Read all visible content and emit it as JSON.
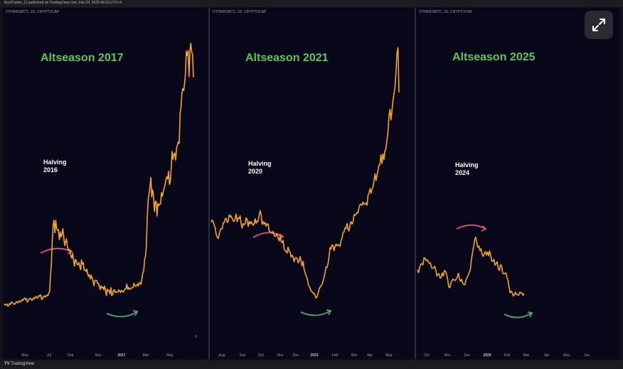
{
  "header": {
    "text": "BestTrader_11 published on TradingView.com, Feb 24, 2025 04:53 UTC+4"
  },
  "footer": {
    "logo_text": "TV",
    "brand": "TradingView"
  },
  "expand_icon": "expand-arrows-icon",
  "colors": {
    "line": "#f5a623",
    "title": "#5fc45f",
    "arrow_pink": "#e05a7a",
    "arrow_green": "#4fa86a",
    "background": "#070719"
  },
  "chart_data": [
    {
      "type": "line",
      "symbol": "OTHERS/BTC, 1D, CRYPTOCAP",
      "title": "Altseason 2017",
      "halving": [
        "Halving",
        "2016"
      ],
      "xlabel": "",
      "ylabel": "",
      "ylim": [
        0,
        100
      ],
      "tick_labels": [
        "May",
        "Jul",
        "Sep",
        "Nov",
        "2017",
        "Mar",
        "May"
      ],
      "corner_label": "0",
      "series": [
        {
          "values": [
            4.1,
            3.6,
            3.8,
            4.0,
            3.2,
            3.5,
            4.2,
            3.9,
            4.8,
            4.5,
            4.3,
            3.9,
            4.0,
            4.6,
            4.9,
            4.4,
            4.7,
            5.2,
            4.8,
            5.0,
            5.6,
            5.3,
            5.9,
            6.2,
            5.7,
            6.0,
            4.7,
            5.3,
            5.8,
            6.1,
            6.0,
            5.4,
            5.5,
            6.3,
            5.9,
            6.6,
            6.8,
            6.2,
            6.4,
            7.1,
            6.9,
            7.4,
            5.7,
            5.9,
            6.7,
            7.0,
            6.5,
            6.9,
            7.3,
            7.0,
            7.9,
            8.5,
            14.0,
            18.7,
            26.8,
            32.8,
            34.7,
            30.1,
            34.6,
            31.7,
            31.0,
            31.2,
            27.6,
            30.4,
            28.6,
            29.6,
            31.6,
            28.4,
            25.4,
            26.8,
            27.9,
            25.1,
            24.1,
            23.5,
            23.6,
            21.6,
            20.8,
            22.6,
            20.1,
            17.9,
            20.3,
            20.0,
            18.5,
            18.4,
            19.2,
            17.7,
            16.6,
            20.2,
            18.6,
            19.1,
            16.4,
            16.5,
            15.9,
            16.8,
            14.9,
            14.1,
            14.8,
            13.2,
            14.5,
            13.5,
            12.4,
            10.7,
            12.6,
            12.7,
            12.6,
            11.6,
            11.6,
            10.5,
            9.3,
            10.7,
            9.9,
            10.2,
            9.3,
            10.6,
            8.8,
            7.1,
            9.5,
            8.9,
            8.9,
            7.7,
            10.0,
            7.1,
            7.5,
            9.1,
            9.2,
            8.2,
            8.4,
            8.4,
            8.4,
            9.2,
            8.7,
            8.2,
            9.0,
            8.7,
            8.4,
            9.1,
            9.5,
            9.6,
            11.3,
            9.4,
            10.1,
            9.3,
            9.6,
            9.8,
            10.0,
            10.0,
            11.6,
            10.8,
            10.5,
            10.8,
            11.4,
            10.6,
            11.8,
            11.8,
            11.2,
            13.3,
            15.4,
            16.3,
            20.3,
            21.5,
            25.3,
            35.8,
            42.0,
            44.5,
            46.8,
            50.4,
            43.2,
            45.8,
            43.8,
            37.9,
            41.4,
            41.7,
            36.2,
            40.8,
            40.0,
            40.6,
            40.7,
            44.8,
            43.4,
            45.0,
            46.5,
            47.6,
            49.6,
            50.6,
            49.8,
            52.6,
            47.8,
            48.8,
            54.1,
            59.9,
            57.0,
            58.8,
            59.3,
            56.7,
            61.2,
            62.3,
            63.4,
            62.8,
            74.0,
            76.0,
            81.1,
            82.9,
            82.2,
            84.6,
            88.5,
            96.6,
            95.0,
            96.8,
            87.3,
            96.5,
            99.5,
            96.4,
            95.3,
            87.0
          ]
        }
      ]
    },
    {
      "type": "line",
      "symbol": "OTHERS/BTC, 1D, CRYPTOCAP",
      "title": "Altseason 2021",
      "halving": [
        "Halving",
        "2020"
      ],
      "xlabel": "",
      "ylabel": "",
      "ylim": [
        0,
        100
      ],
      "tick_labels": [
        "Aug",
        "Sep",
        "Oct",
        "Nov",
        "Dec",
        "2021",
        "Feb",
        "Mar",
        "Apr",
        "May"
      ],
      "series": [
        {
          "values": [
            34.0,
            34.8,
            34.2,
            32.9,
            31.9,
            29.3,
            28.5,
            27.8,
            29.4,
            30.9,
            31.6,
            31.5,
            33.7,
            33.9,
            35.3,
            35.5,
            33.9,
            34.4,
            36.8,
            36.1,
            36.4,
            35.4,
            34.5,
            34.3,
            35.5,
            37.1,
            34.2,
            35.6,
            35.4,
            36.4,
            33.4,
            31.8,
            33.5,
            33.1,
            33.4,
            35.7,
            34.9,
            32.4,
            34.3,
            33.3,
            34.2,
            33.6,
            32.8,
            33.4,
            35.3,
            33.6,
            34.4,
            34.3,
            36.7,
            38.4,
            36.9,
            33.2,
            34.2,
            33.3,
            33.9,
            32.5,
            33.4,
            33.3,
            30.7,
            30.4,
            30.2,
            29.8,
            30.5,
            29.0,
            28.6,
            29.0,
            29.6,
            27.9,
            26.9,
            28.7,
            26.6,
            26.3,
            27.1,
            23.9,
            23.2,
            22.9,
            22.3,
            24.6,
            23.1,
            22.7,
            20.8,
            21.5,
            20.9,
            19.1,
            20.4,
            20.6,
            20.3,
            18.6,
            19.4,
            21.0,
            19.1,
            17.5,
            19.2,
            16.1,
            15.0,
            13.6,
            12.9,
            10.8,
            9.8,
            9.1,
            8.0,
            7.6,
            7.2,
            7.1,
            6.3,
            5.3,
            5.8,
            7.1,
            8.8,
            9.5,
            9.9,
            10.5,
            11.8,
            13.1,
            15.0,
            17.1,
            16.9,
            18.4,
            21.1,
            24.4,
            23.9,
            25.4,
            25.2,
            23.2,
            24.8,
            25.7,
            25.1,
            25.5,
            25.3,
            24.9,
            27.1,
            28.0,
            30.1,
            30.3,
            31.9,
            31.6,
            33.5,
            31.3,
            30.7,
            33.2,
            34.2,
            33.3,
            34.0,
            36.9,
            36.6,
            36.9,
            37.7,
            37.5,
            39.6,
            40.7,
            40.8,
            40.4,
            41.6,
            40.8,
            40.9,
            41.3,
            40.4,
            44.1,
            45.0,
            46.7,
            44.9,
            46.6,
            47.3,
            49.5,
            52.3,
            49.8,
            51.8,
            53.5,
            55.7,
            55.9,
            59.5,
            56.2,
            59.8,
            57.7,
            61.0,
            61.8,
            65.1,
            68.3,
            74.4,
            76.7,
            72.7,
            76.2,
            80.0,
            82.6,
            85.0,
            90.9,
            97.9,
            100.0,
            83.1
          ]
        }
      ]
    },
    {
      "type": "line",
      "symbol": "OTHERS/BTC, 1D, CRYPTOCAP",
      "title": "Altseason 2025",
      "halving": [
        "Halving",
        "2024"
      ],
      "xlabel": "",
      "ylabel": "",
      "ylim": [
        0,
        100
      ],
      "tick_labels": [
        "Oct",
        "Nov",
        "Dec",
        "2025",
        "Feb",
        "Mar",
        "Apr",
        "May",
        "Jun"
      ],
      "series": [
        {
          "values": [
            22.0,
            20.5,
            22.9,
            24.6,
            25.1,
            24.4,
            28.0,
            27.8,
            26.6,
            27.0,
            26.1,
            25.2,
            25.4,
            23.0,
            22.7,
            23.0,
            23.8,
            21.7,
            18.9,
            19.7,
            20.0,
            17.9,
            18.0,
            20.4,
            18.9,
            21.6,
            21.2,
            19.8,
            17.2,
            13.5,
            13.0,
            15.3,
            16.5,
            17.4,
            16.8,
            16.6,
            17.3,
            18.4,
            20.3,
            17.3,
            16.2,
            17.2,
            15.3,
            14.6,
            14.5,
            16.8,
            18.1,
            19.1,
            20.6,
            21.8,
            27.1,
            30.2,
            33.4,
            36.9,
            38.4,
            36.0,
            33.3,
            33.9,
            31.6,
            32.5,
            29.6,
            28.7,
            30.1,
            31.1,
            29.4,
            31.0,
            29.0,
            31.4,
            29.0,
            26.2,
            26.3,
            27.2,
            24.3,
            25.2,
            26.0,
            22.6,
            21.6,
            24.4,
            24.1,
            20.6,
            19.9,
            20.1,
            20.5,
            18.1,
            16.8,
            13.3,
            10.5,
            11.2,
            10.4,
            8.8,
            9.5,
            10.7,
            9.5,
            9.5,
            9.2,
            10.7,
            10.3,
            10.4,
            9.1,
            10.0
          ]
        }
      ]
    }
  ]
}
